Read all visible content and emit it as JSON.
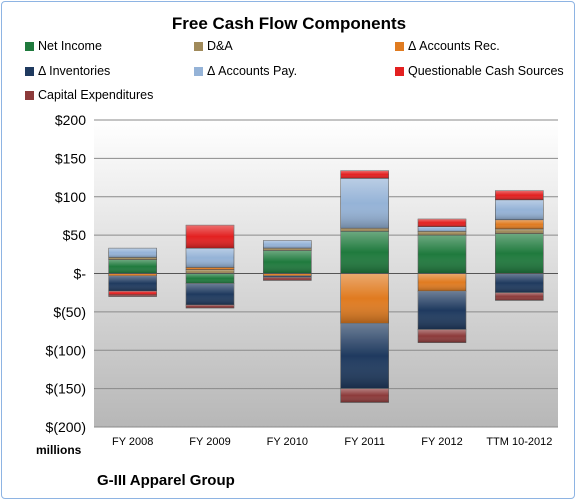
{
  "chart_data": {
    "type": "bar",
    "title": "Free Cash Flow Components",
    "subtitle": "G-III Apparel Group",
    "ylabel": "millions",
    "xlabel": "",
    "ylim": [
      -200,
      200
    ],
    "yticks": [
      200,
      150,
      100,
      50,
      0,
      -50,
      -100,
      -150,
      -200
    ],
    "ytick_labels": [
      "$200",
      "$150",
      "$100",
      "$50",
      "$-",
      "$(50)",
      "$(100)",
      "$(150)",
      "$(200)"
    ],
    "grid": true,
    "stacked": true,
    "legend_position": "top",
    "categories": [
      "FY 2008",
      "FY 2009",
      "FY 2010",
      "FY 2011",
      "FY 2012",
      "TTM 10-2012"
    ],
    "series": [
      {
        "name": "Net Income",
        "color": "#1f7a3d",
        "values": [
          18,
          -13,
          30,
          55,
          50,
          52
        ]
      },
      {
        "name": "D&A",
        "color": "#a08a5a",
        "values": [
          3,
          5,
          3,
          4,
          5,
          6
        ]
      },
      {
        "name": "Δ Accounts Rec.",
        "color": "#e07b20",
        "values": [
          -3,
          3,
          -3,
          -65,
          -23,
          12
        ]
      },
      {
        "name": "Δ Inventories",
        "color": "#1f3a5f",
        "values": [
          -20,
          -28,
          -2,
          -85,
          -50,
          -25
        ]
      },
      {
        "name": "Δ Accounts Pay.",
        "color": "#95b3d7",
        "values": [
          12,
          25,
          10,
          65,
          6,
          26
        ]
      },
      {
        "name": "Questionable Cash Sources",
        "color": "#e32020",
        "values": [
          -5,
          30,
          0,
          10,
          10,
          12
        ]
      },
      {
        "name": "Capital Expenditures",
        "color": "#8c3a3a",
        "values": [
          -2,
          -4,
          -4,
          -18,
          -17,
          -10
        ]
      }
    ]
  }
}
